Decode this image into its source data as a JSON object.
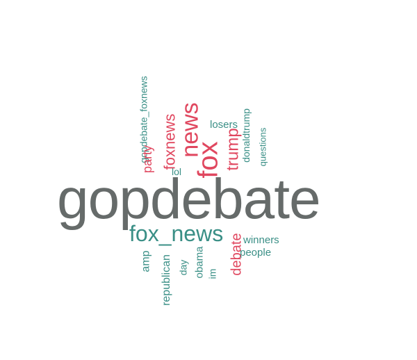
{
  "wordcloud": {
    "colors": {
      "gray": "#666b6a",
      "teal": "#3a8f86",
      "red": "#e0475f"
    },
    "words": {
      "gopdebate": "gopdebate",
      "fox_news": "fox_news",
      "gopdebate_foxnews": "gopdebate_foxnews",
      "party": "party",
      "foxnews": "foxnews",
      "news": "news",
      "lol": "lol",
      "fox": "fox",
      "trump": "trump",
      "losers": "losers",
      "donaldtrump": "donaldtrump",
      "questions": "questions",
      "winners": "winners",
      "people": "people",
      "debate": "debate",
      "amp": "amp",
      "republican": "republican",
      "day": "day",
      "obama": "obama",
      "im": "im"
    }
  }
}
